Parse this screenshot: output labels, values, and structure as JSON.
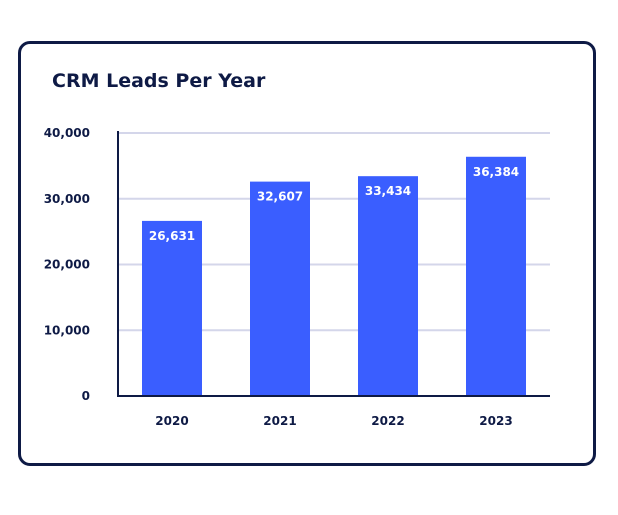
{
  "chart_data": {
    "type": "bar",
    "title": "CRM Leads Per Year",
    "categories": [
      "2020",
      "2021",
      "2022",
      "2023"
    ],
    "values": [
      26631,
      32607,
      33434,
      36384
    ],
    "data_labels": [
      "26,631",
      "32,607",
      "33,434",
      "36,384"
    ],
    "y_ticks": [
      0,
      10000,
      20000,
      30000,
      40000
    ],
    "y_tick_labels": [
      "0",
      "10,000",
      "20,000",
      "30,000",
      "40,000"
    ],
    "ylim": [
      0,
      40000
    ],
    "xlabel": "",
    "ylabel": "",
    "grid": true,
    "legend": "none",
    "colors": {
      "bar": "#3a5eff",
      "text": "#0e1a45",
      "grid": "#d4d6ea",
      "axis": "#0e1a45",
      "border": "#0e1a45"
    }
  }
}
